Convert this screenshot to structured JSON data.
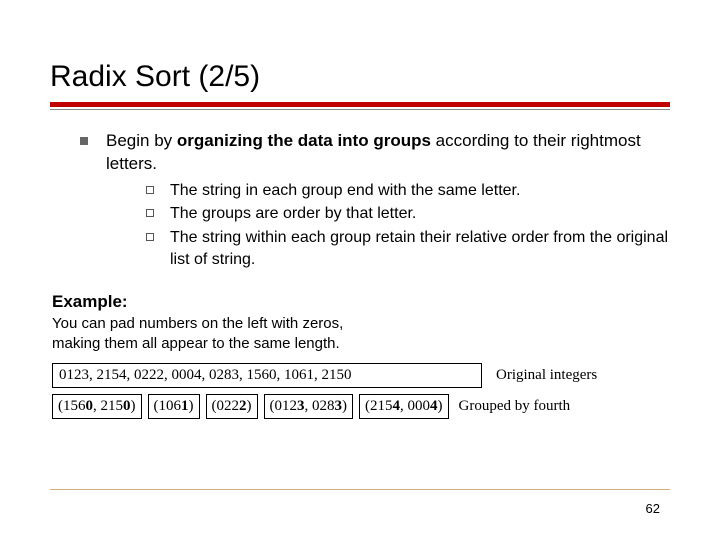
{
  "title": "Radix Sort (2/5)",
  "main_point": {
    "prefix": "Begin by ",
    "bold": "organizing the data into groups",
    "suffix": " according to their rightmost letters."
  },
  "sub_points": [
    "The string in each group end with the same letter.",
    "The groups are order by that letter.",
    "The string within each group retain their relative order from the original list of string."
  ],
  "example": {
    "label": "Example:",
    "desc_line1": "You can pad numbers on the left with zeros,",
    "desc_line2": "making them all appear to the same length.",
    "row1_box": "0123, 2154, 0222, 0004, 0283, 1560, 1061, 2150",
    "row1_label": "Original integers",
    "row2_boxes": [
      "(1560, 2150)",
      "(1061)",
      "(0222)",
      "(0123, 0283)",
      "(2154, 0004)"
    ],
    "row2_label": "Grouped by fourth"
  },
  "page": "62",
  "colors": {
    "accent_red": "#c00000"
  }
}
